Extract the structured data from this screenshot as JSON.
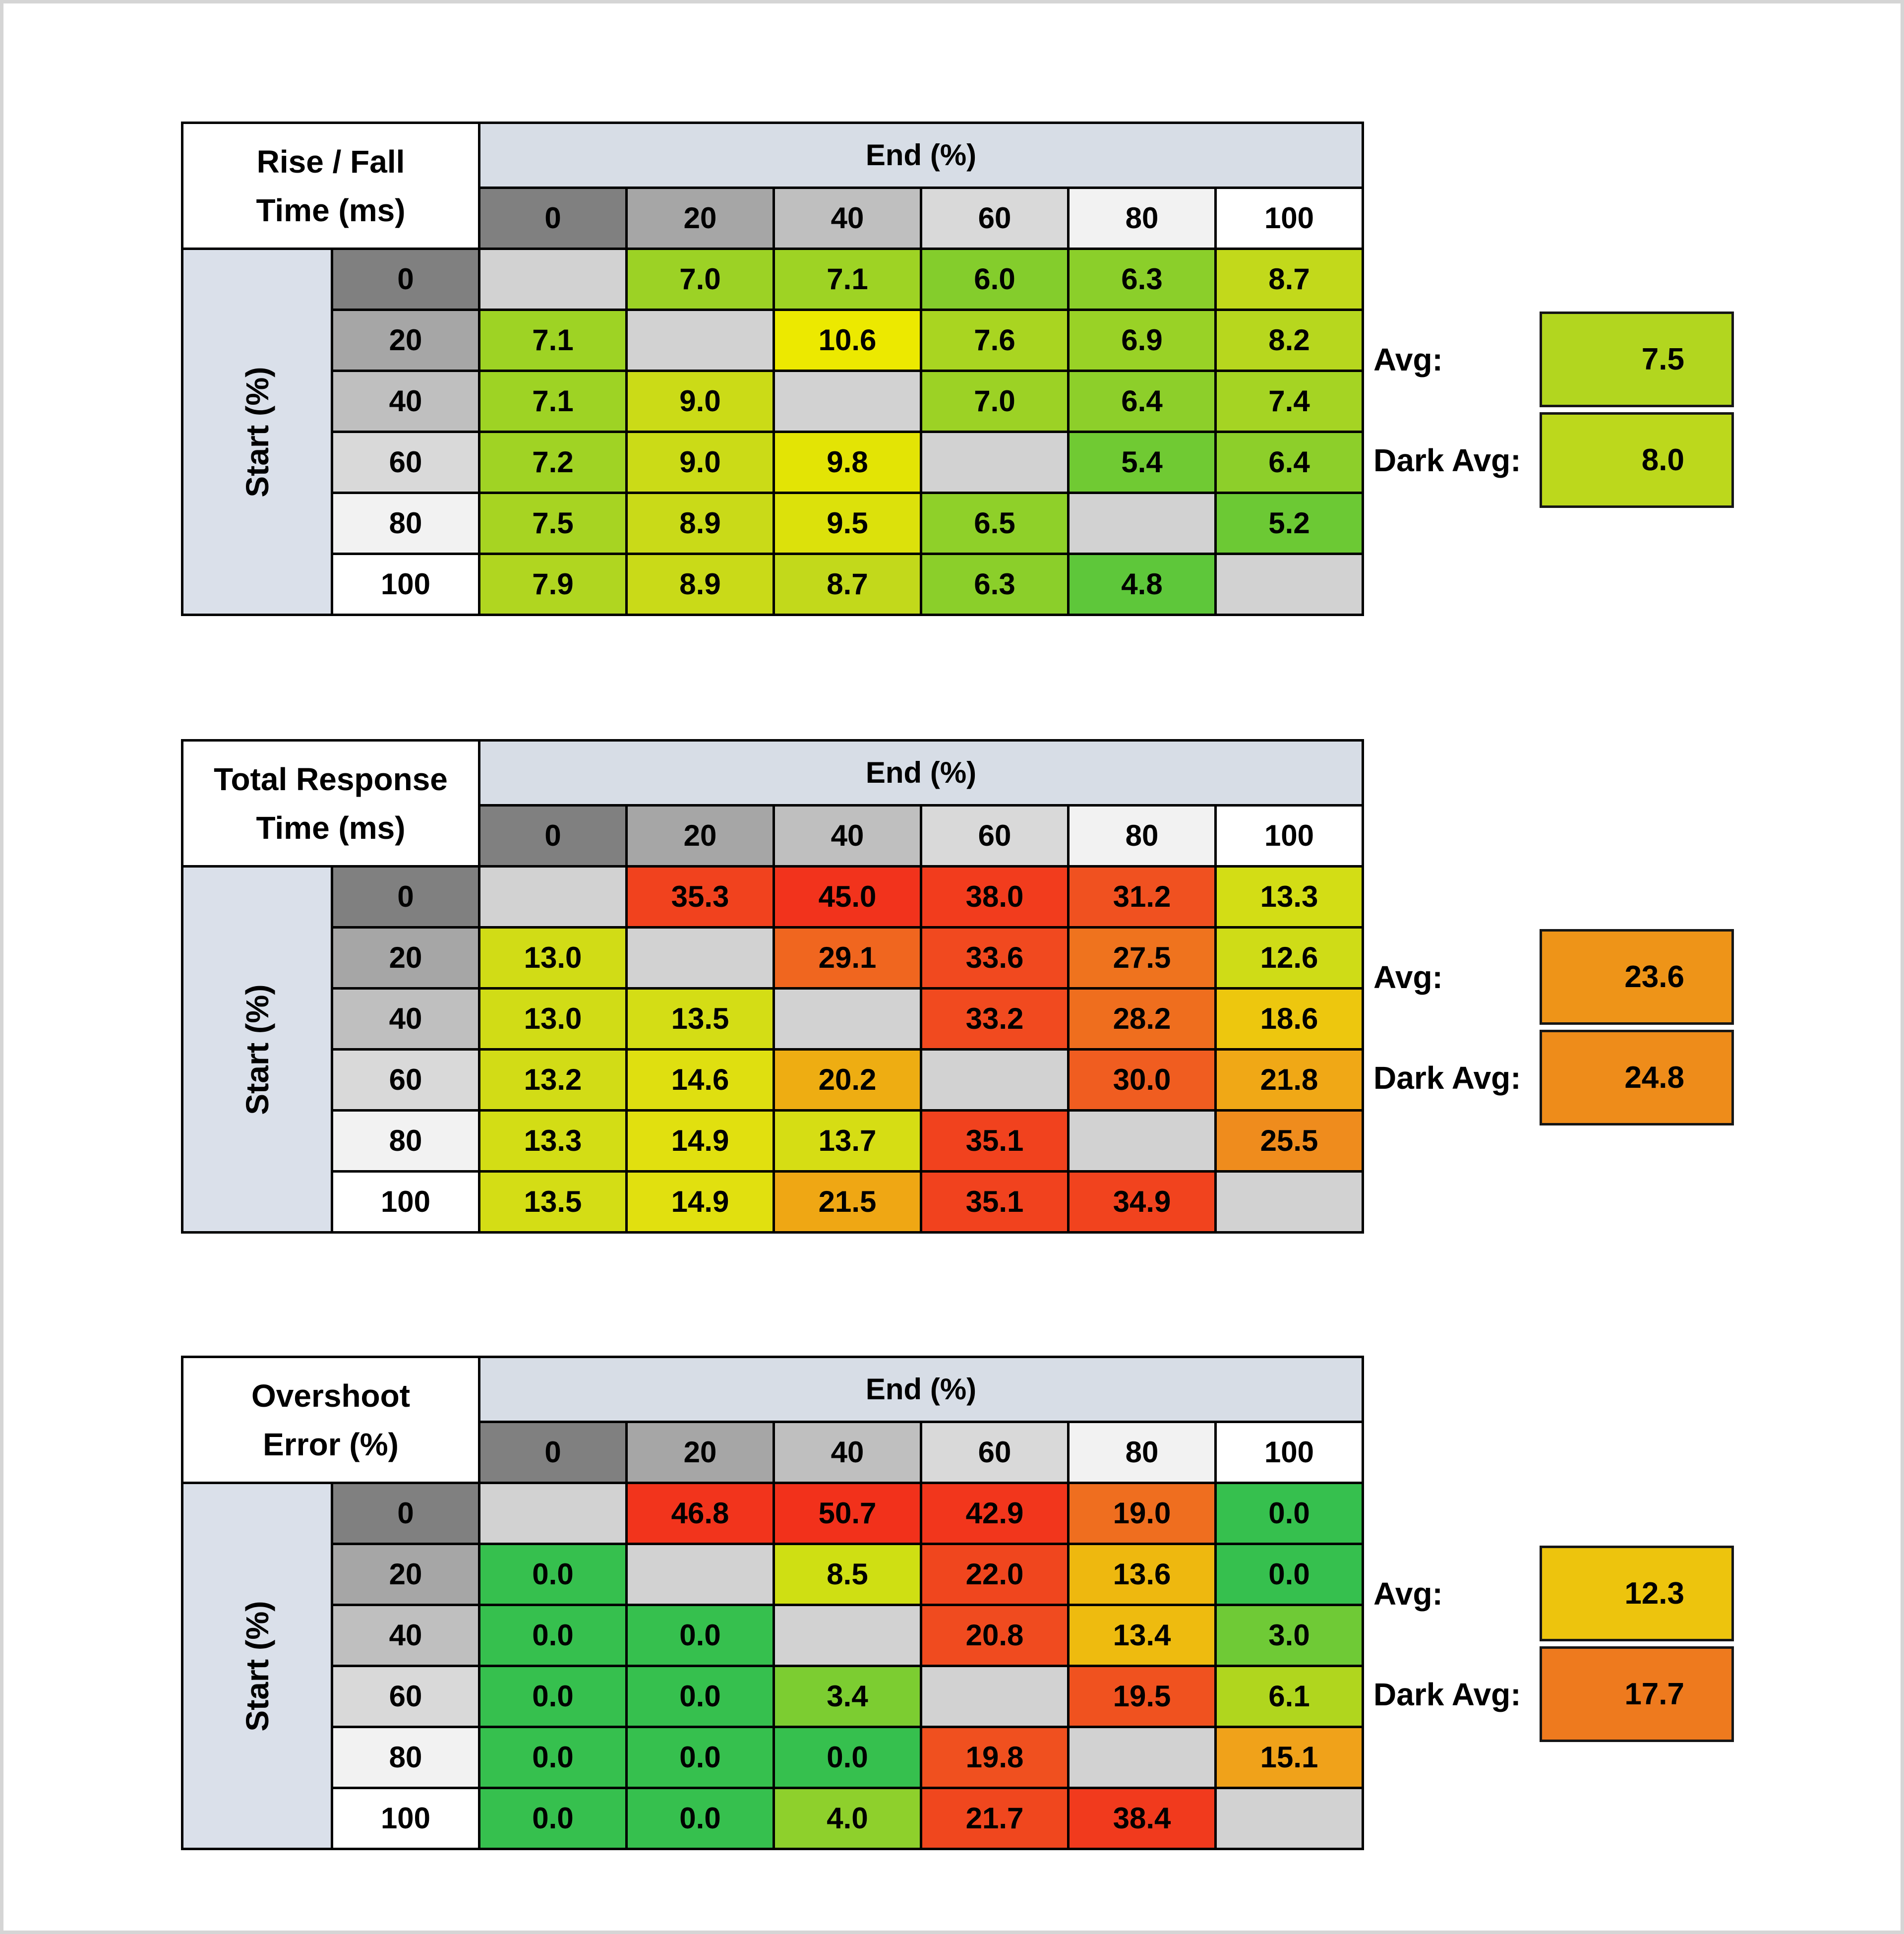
{
  "page": {
    "background": "#ffffff",
    "frame_color": "#d5d5d5"
  },
  "shared": {
    "end_header": "End (%)",
    "start_header": "Start (%)",
    "col_headers": [
      "0",
      "20",
      "40",
      "60",
      "80",
      "100"
    ],
    "row_headers": [
      "0",
      "20",
      "40",
      "60",
      "80",
      "100"
    ],
    "header_grays": [
      "#808080",
      "#a6a6a6",
      "#bfbfbf",
      "#d9d9d9",
      "#f2f2f2",
      "#ffffff"
    ],
    "end_band_color": "#d7dde6",
    "sidebar_color": "#dae0ea",
    "blank_color": "#d2d2d2",
    "avg_label": "Avg:",
    "dark_avg_label": "Dark Avg:"
  },
  "tables": [
    {
      "title_line1": "Rise / Fall",
      "title_line2": "Time (ms)",
      "avg": {
        "value": "7.5",
        "color": "#b2d61f"
      },
      "dark_avg": {
        "value": "8.0",
        "color": "#bcd81c"
      },
      "rows": [
        [
          null,
          {
            "v": "7.0",
            "c": "#9cd225"
          },
          {
            "v": "7.1",
            "c": "#9ed324"
          },
          {
            "v": "6.0",
            "c": "#84cd2c"
          },
          {
            "v": "6.3",
            "c": "#8bcf2a"
          },
          {
            "v": "8.7",
            "c": "#c2d91b"
          }
        ],
        [
          {
            "v": "7.1",
            "c": "#9ed324"
          },
          null,
          {
            "v": "10.6",
            "c": "#ece900"
          },
          {
            "v": "7.6",
            "c": "#a9d521"
          },
          {
            "v": "6.9",
            "c": "#99d226"
          },
          {
            "v": "8.2",
            "c": "#b7d71e"
          }
        ],
        [
          {
            "v": "7.1",
            "c": "#9ed324"
          },
          {
            "v": "9.0",
            "c": "#cbdb17"
          },
          null,
          {
            "v": "7.0",
            "c": "#9cd225"
          },
          {
            "v": "6.4",
            "c": "#8dcf2a"
          },
          {
            "v": "7.4",
            "c": "#a5d423"
          }
        ],
        [
          {
            "v": "7.2",
            "c": "#a0d324"
          },
          {
            "v": "9.0",
            "c": "#cbdb17"
          },
          {
            "v": "9.8",
            "c": "#e3e405"
          },
          null,
          {
            "v": "5.4",
            "c": "#70ca33"
          },
          {
            "v": "6.4",
            "c": "#8dcf2a"
          }
        ],
        [
          {
            "v": "7.5",
            "c": "#a7d422"
          },
          {
            "v": "8.9",
            "c": "#c9da18"
          },
          {
            "v": "9.5",
            "c": "#dce10b"
          },
          {
            "v": "6.5",
            "c": "#8fd029"
          },
          null,
          {
            "v": "5.2",
            "c": "#6cc934"
          }
        ],
        [
          {
            "v": "7.9",
            "c": "#b0d620"
          },
          {
            "v": "8.9",
            "c": "#c9da18"
          },
          {
            "v": "8.7",
            "c": "#c2d91b"
          },
          {
            "v": "6.3",
            "c": "#8bcf2a"
          },
          {
            "v": "4.8",
            "c": "#5ec73a"
          },
          null
        ]
      ]
    },
    {
      "title_line1": "Total Response",
      "title_line2": "Time (ms)",
      "avg": {
        "value": "23.6",
        "color": "#ee9418"
      },
      "dark_avg": {
        "value": "24.8",
        "color": "#ee8c1a"
      },
      "rows": [
        [
          null,
          {
            "v": "35.3",
            "c": "#f1421e"
          },
          {
            "v": "45.0",
            "c": "#f2331c"
          },
          {
            "v": "38.0",
            "c": "#f23c1d"
          },
          {
            "v": "31.2",
            "c": "#f05120"
          },
          {
            "v": "13.3",
            "c": "#d3dd15"
          }
        ],
        [
          {
            "v": "13.0",
            "c": "#d1dc16"
          },
          null,
          {
            "v": "29.1",
            "c": "#f0661f"
          },
          {
            "v": "33.6",
            "c": "#f1491f"
          },
          {
            "v": "27.5",
            "c": "#ef731e"
          },
          {
            "v": "12.6",
            "c": "#cfdc17"
          }
        ],
        [
          {
            "v": "13.0",
            "c": "#d1dc16"
          },
          {
            "v": "13.5",
            "c": "#d4dd15"
          },
          null,
          {
            "v": "33.2",
            "c": "#f14a1f"
          },
          {
            "v": "28.2",
            "c": "#ef6e1e"
          },
          {
            "v": "18.6",
            "c": "#edc70e"
          }
        ],
        [
          {
            "v": "13.2",
            "c": "#d2dc16"
          },
          {
            "v": "14.6",
            "c": "#dfdf10"
          },
          {
            "v": "20.2",
            "c": "#eead12"
          },
          null,
          {
            "v": "30.0",
            "c": "#f05d20"
          },
          {
            "v": "21.8",
            "c": "#f0a816"
          }
        ],
        [
          {
            "v": "13.3",
            "c": "#d3dd15"
          },
          {
            "v": "14.9",
            "c": "#e1e00f"
          },
          {
            "v": "13.7",
            "c": "#d6dd14"
          },
          {
            "v": "35.1",
            "c": "#f1421e"
          },
          null,
          {
            "v": "25.5",
            "c": "#ef8c1d"
          }
        ],
        [
          {
            "v": "13.5",
            "c": "#d4dd15"
          },
          {
            "v": "14.9",
            "c": "#e1e00f"
          },
          {
            "v": "21.5",
            "c": "#efa714"
          },
          {
            "v": "35.1",
            "c": "#f1421e"
          },
          {
            "v": "34.9",
            "c": "#f1431e"
          },
          null
        ]
      ]
    },
    {
      "title_line1": "Overshoot",
      "title_line2": "Error (%)",
      "avg": {
        "value": "12.3",
        "color": "#edc40d"
      },
      "dark_avg": {
        "value": "17.7",
        "color": "#ee7a1e"
      },
      "rows": [
        [
          null,
          {
            "v": "46.8",
            "c": "#f2341c"
          },
          {
            "v": "50.7",
            "c": "#f2311b"
          },
          {
            "v": "42.9",
            "c": "#f2361c"
          },
          {
            "v": "19.0",
            "c": "#ef6e1f"
          },
          {
            "v": "0.0",
            "c": "#36c04e"
          }
        ],
        [
          {
            "v": "0.0",
            "c": "#36c04e"
          },
          null,
          {
            "v": "8.5",
            "c": "#cfdf13"
          },
          {
            "v": "22.0",
            "c": "#f0461e"
          },
          {
            "v": "13.6",
            "c": "#eeb80f"
          },
          {
            "v": "0.0",
            "c": "#36c04e"
          }
        ],
        [
          {
            "v": "0.0",
            "c": "#36c04e"
          },
          {
            "v": "0.0",
            "c": "#36c04e"
          },
          null,
          {
            "v": "20.8",
            "c": "#f04b1f"
          },
          {
            "v": "13.4",
            "c": "#eebb0f"
          },
          {
            "v": "3.0",
            "c": "#6fca36"
          }
        ],
        [
          {
            "v": "0.0",
            "c": "#36c04e"
          },
          {
            "v": "0.0",
            "c": "#36c04e"
          },
          {
            "v": "3.4",
            "c": "#7ccd31"
          },
          null,
          {
            "v": "19.5",
            "c": "#f0521f"
          },
          {
            "v": "6.1",
            "c": "#b0d61e"
          }
        ],
        [
          {
            "v": "0.0",
            "c": "#36c04e"
          },
          {
            "v": "0.0",
            "c": "#36c04e"
          },
          {
            "v": "0.0",
            "c": "#36c04e"
          },
          {
            "v": "19.8",
            "c": "#f0501f"
          },
          null,
          {
            "v": "15.1",
            "c": "#f0a21a"
          }
        ],
        [
          {
            "v": "0.0",
            "c": "#36c04e"
          },
          {
            "v": "0.0",
            "c": "#36c04e"
          },
          {
            "v": "4.0",
            "c": "#8ed02c"
          },
          {
            "v": "21.7",
            "c": "#f0471e"
          },
          {
            "v": "38.4",
            "c": "#f13a1d"
          },
          null
        ]
      ]
    }
  ],
  "chart_data": [
    {
      "type": "heatmap",
      "title": "Rise / Fall Time (ms)",
      "xlabel": "End (%)",
      "ylabel": "Start (%)",
      "x": [
        0,
        20,
        40,
        60,
        80,
        100
      ],
      "y": [
        0,
        20,
        40,
        60,
        80,
        100
      ],
      "values": [
        [
          null,
          7.0,
          7.1,
          6.0,
          6.3,
          8.7
        ],
        [
          7.1,
          null,
          10.6,
          7.6,
          6.9,
          8.2
        ],
        [
          7.1,
          9.0,
          null,
          7.0,
          6.4,
          7.4
        ],
        [
          7.2,
          9.0,
          9.8,
          null,
          5.4,
          6.4
        ],
        [
          7.5,
          8.9,
          9.5,
          6.5,
          null,
          5.2
        ],
        [
          7.9,
          8.9,
          8.7,
          6.3,
          4.8,
          null
        ]
      ],
      "avg": 7.5,
      "dark_avg": 8.0,
      "color_scale": "green(low) to yellow(high)"
    },
    {
      "type": "heatmap",
      "title": "Total Response Time (ms)",
      "xlabel": "End (%)",
      "ylabel": "Start (%)",
      "x": [
        0,
        20,
        40,
        60,
        80,
        100
      ],
      "y": [
        0,
        20,
        40,
        60,
        80,
        100
      ],
      "values": [
        [
          null,
          35.3,
          45.0,
          38.0,
          31.2,
          13.3
        ],
        [
          13.0,
          null,
          29.1,
          33.6,
          27.5,
          12.6
        ],
        [
          13.0,
          13.5,
          null,
          33.2,
          28.2,
          18.6
        ],
        [
          13.2,
          14.6,
          20.2,
          null,
          30.0,
          21.8
        ],
        [
          13.3,
          14.9,
          13.7,
          35.1,
          null,
          25.5
        ],
        [
          13.5,
          14.9,
          21.5,
          35.1,
          34.9,
          null
        ]
      ],
      "avg": 23.6,
      "dark_avg": 24.8,
      "color_scale": "yellow-green(low) through orange to red(high)"
    },
    {
      "type": "heatmap",
      "title": "Overshoot Error (%)",
      "xlabel": "End (%)",
      "ylabel": "Start (%)",
      "x": [
        0,
        20,
        40,
        60,
        80,
        100
      ],
      "y": [
        0,
        20,
        40,
        60,
        80,
        100
      ],
      "values": [
        [
          null,
          46.8,
          50.7,
          42.9,
          19.0,
          0.0
        ],
        [
          0.0,
          null,
          8.5,
          22.0,
          13.6,
          0.0
        ],
        [
          0.0,
          0.0,
          null,
          20.8,
          13.4,
          3.0
        ],
        [
          0.0,
          0.0,
          3.4,
          null,
          19.5,
          6.1
        ],
        [
          0.0,
          0.0,
          0.0,
          19.8,
          null,
          15.1
        ],
        [
          0.0,
          0.0,
          4.0,
          21.7,
          38.4,
          null
        ]
      ],
      "avg": 12.3,
      "dark_avg": 17.7,
      "color_scale": "green(low) through yellow/orange to red(high)"
    }
  ]
}
